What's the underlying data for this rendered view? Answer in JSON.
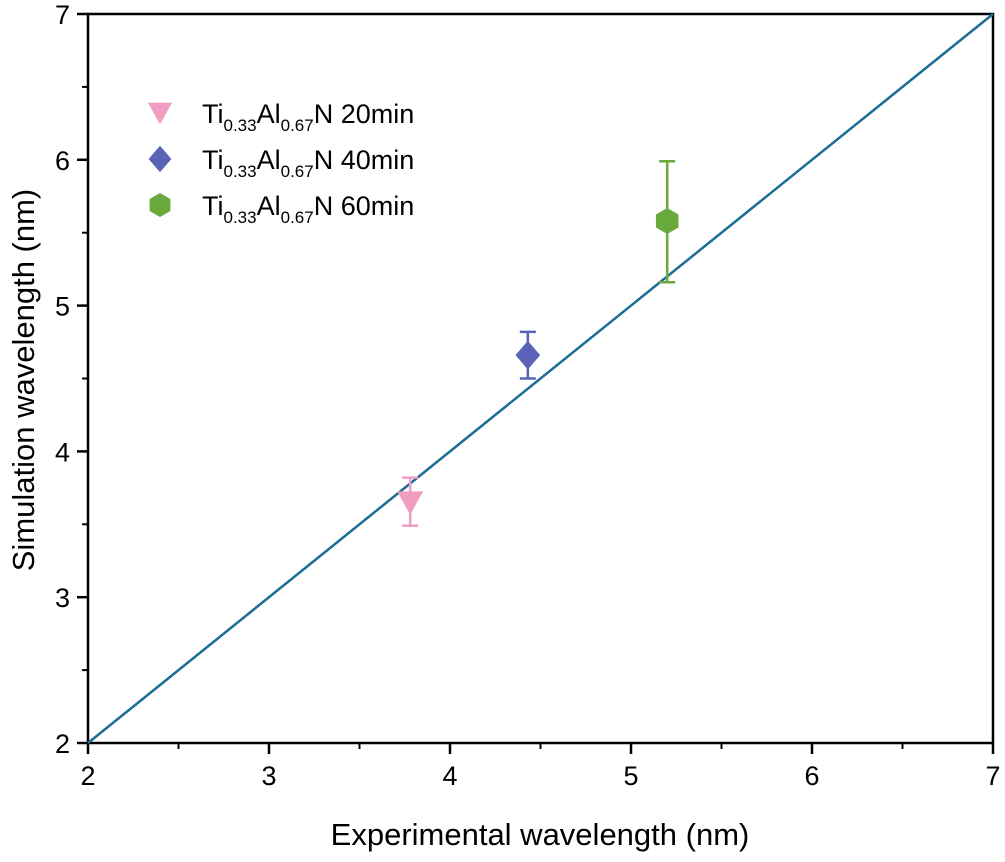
{
  "chart_data": {
    "type": "scatter",
    "title": "",
    "xlabel": "Experimental wavelength (nm)",
    "ylabel": "Simulation wavelength (nm)",
    "xlim": [
      2,
      7
    ],
    "ylim": [
      2,
      7
    ],
    "xticks": [
      2,
      3,
      4,
      5,
      6,
      7
    ],
    "yticks": [
      2,
      3,
      4,
      5,
      6,
      7
    ],
    "xtick_labels": [
      "2",
      "3",
      "4",
      "5",
      "6",
      "7"
    ],
    "ytick_labels": [
      "2",
      "3",
      "4",
      "5",
      "6",
      "7"
    ],
    "grid": false,
    "legend_position": "top-left",
    "reference_line": {
      "name": "y = x",
      "x": [
        2,
        7
      ],
      "y": [
        2,
        7
      ],
      "color": "#1b6d96"
    },
    "series": [
      {
        "name": "Ti0.33Al0.67N 20min",
        "label_parts": {
          "el1": "Ti",
          "sub1": "0.33",
          "el2": "Al",
          "sub2": "0.67",
          "rest": "N 20min"
        },
        "marker": "triangle-down",
        "color": "#ef9ec2",
        "x": 3.78,
        "y": 3.65,
        "yerr_low": 3.49,
        "yerr_high": 3.82
      },
      {
        "name": "Ti0.33Al0.67N 40min",
        "label_parts": {
          "el1": "Ti",
          "sub1": "0.33",
          "el2": "Al",
          "sub2": "0.67",
          "rest": "N 40min"
        },
        "marker": "diamond",
        "color": "#5a63b8",
        "x": 4.43,
        "y": 4.66,
        "yerr_low": 4.5,
        "yerr_high": 4.82
      },
      {
        "name": "Ti0.33Al0.67N 60min",
        "label_parts": {
          "el1": "Ti",
          "sub1": "0.33",
          "el2": "Al",
          "sub2": "0.67",
          "rest": "N 60min"
        },
        "marker": "hexagon",
        "color": "#6aaa3c",
        "x": 5.2,
        "y": 5.58,
        "yerr_low": 5.16,
        "yerr_high": 5.99
      }
    ]
  }
}
